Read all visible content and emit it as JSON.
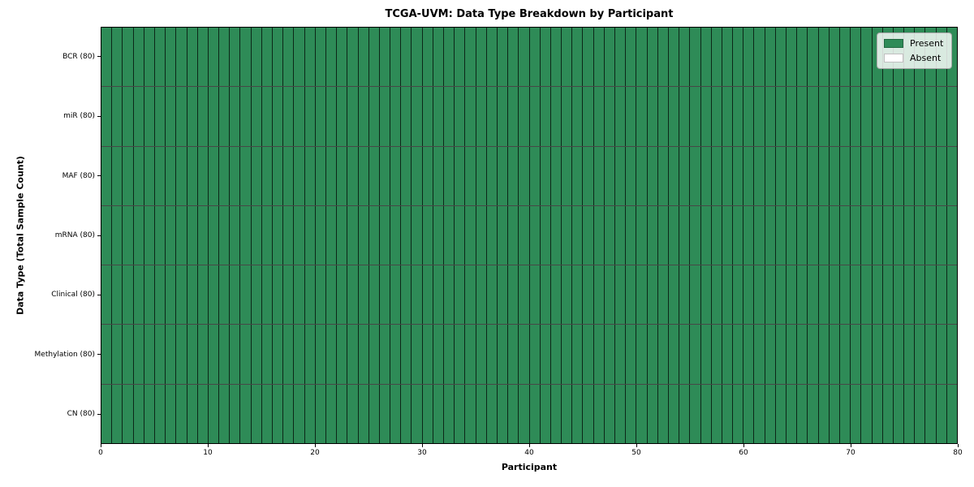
{
  "title": "TCGA-UVM: Data Type Breakdown by Participant",
  "chart_data": {
    "type": "heatmap",
    "title": "TCGA-UVM: Data Type Breakdown by Participant",
    "xlabel": "Participant",
    "ylabel": "Data Type (Total Sample Count)",
    "xlim": [
      0,
      80
    ],
    "x_ticks": [
      0,
      10,
      20,
      30,
      40,
      50,
      60,
      70,
      80
    ],
    "n_participants": 80,
    "grid": false,
    "legend_position": "upper right",
    "rows": [
      {
        "label": "BCR (80)",
        "data_type": "BCR",
        "total_sample_count": 80,
        "present_count": 80,
        "absent_count": 0
      },
      {
        "label": "miR (80)",
        "data_type": "miR",
        "total_sample_count": 80,
        "present_count": 80,
        "absent_count": 0
      },
      {
        "label": "MAF (80)",
        "data_type": "MAF",
        "total_sample_count": 80,
        "present_count": 80,
        "absent_count": 0
      },
      {
        "label": "mRNA (80)",
        "data_type": "mRNA",
        "total_sample_count": 80,
        "present_count": 80,
        "absent_count": 0
      },
      {
        "label": "Clinical (80)",
        "data_type": "Clinical",
        "total_sample_count": 80,
        "present_count": 80,
        "absent_count": 0
      },
      {
        "label": "Methylation (80)",
        "data_type": "Methylation",
        "total_sample_count": 80,
        "present_count": 80,
        "absent_count": 0
      },
      {
        "label": "CN (80)",
        "data_type": "CN",
        "total_sample_count": 80,
        "present_count": 80,
        "absent_count": 0
      }
    ],
    "legend": {
      "entries": [
        {
          "label": "Present",
          "color": "#2e8b57"
        },
        {
          "label": "Absent",
          "color": "#ffffff"
        }
      ]
    },
    "colors": {
      "present": "#2e8b57",
      "absent": "#ffffff",
      "cell_edge": "#1c4230",
      "spine": "#000000"
    }
  }
}
